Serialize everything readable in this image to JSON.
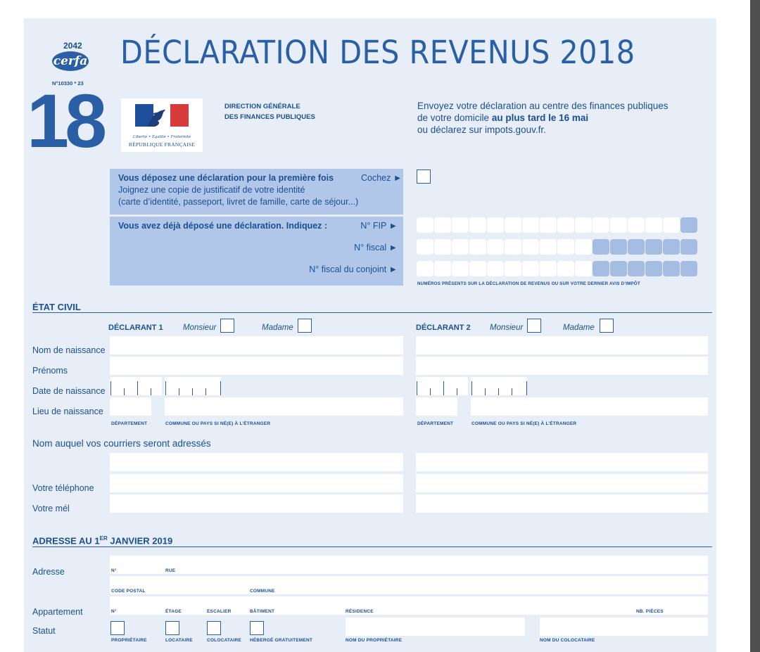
{
  "header": {
    "form_number": "2042",
    "cerfa": "cerfa",
    "cerfa_ref": "N°10330 * 23",
    "big_number": "18",
    "title": "DÉCLARATION DES REVENUS 2018",
    "dgfip_line1": "DIRECTION GÉNÉRALE",
    "dgfip_line2": "DES FINANCES PUBLIQUES",
    "logo_motto": "Liberté • Égalité • Fraternité",
    "logo_name": "RÉPUBLIQUE FRANÇAISE",
    "send_line1": "Envoyez votre déclaration au centre des finances publiques",
    "send_line2a": "de votre domicile ",
    "send_line2b": "au plus tard le 16 mai",
    "send_line3": "ou déclarez sur impots.gouv.fr."
  },
  "first_time": {
    "line1": "Vous déposez une déclaration pour la première fois",
    "cochez": "Cochez ►",
    "line2": "Joignez une copie de justificatif de votre identité",
    "line3": "(carte d’identité, passeport, livret de famille, carte de séjour...)"
  },
  "already": {
    "label": "Vous avez déjà déposé une déclaration. Indiquez :",
    "fip": "N° FIP ►",
    "fiscal": "N° fiscal ►",
    "fiscal_conjoint": "N° fiscal du conjoint ►",
    "note": "NUMÉROS PRÉSENTS SUR LA DÉCLARATION DE REVENUS OU SUR VOTRE DERNIER AVIS D’IMPÔT"
  },
  "etat_civil": {
    "title": "ÉTAT CIVIL",
    "declarant1": "DÉCLARANT 1",
    "declarant2": "DÉCLARANT 2",
    "monsieur": "Monsieur",
    "madame": "Madame",
    "nom_naissance": "Nom de naissance",
    "prenoms": "Prénoms",
    "date_naissance": "Date de naissance",
    "lieu_naissance": "Lieu de naissance",
    "departement": "DÉPARTEMENT",
    "commune": "COMMUNE OU PAYS SI NÉ(E) À L’ÉTRANGER",
    "nom_courriers": "Nom auquel vos courriers seront adressés",
    "telephone": "Votre téléphone",
    "mel": "Votre mél"
  },
  "adresse": {
    "title_a": "ADRESSE AU 1",
    "title_sup": "ER",
    "title_b": " JANVIER 2019",
    "adresse": "Adresse",
    "no": "N°",
    "rue": "RUE",
    "code_postal": "CODE POSTAL",
    "commune": "COMMUNE",
    "appartement": "Appartement",
    "etage": "ÉTAGE",
    "escalier": "ESCALIER",
    "batiment": "BÂTIMENT",
    "residence": "RÉSIDENCE",
    "nb_pieces": "NB. PIÈCES",
    "statut": "Statut",
    "proprietaire": "PROPRIÉTAIRE",
    "locataire": "LOCATAIRE",
    "colocataire": "COLOCATAIRE",
    "heberge": "HÉBERGÉ GRATUITEMENT",
    "nom_proprietaire": "NOM DU PROPRIÉTAIRE",
    "nom_colocataire": "NOM DU COLOCATAIRE"
  }
}
